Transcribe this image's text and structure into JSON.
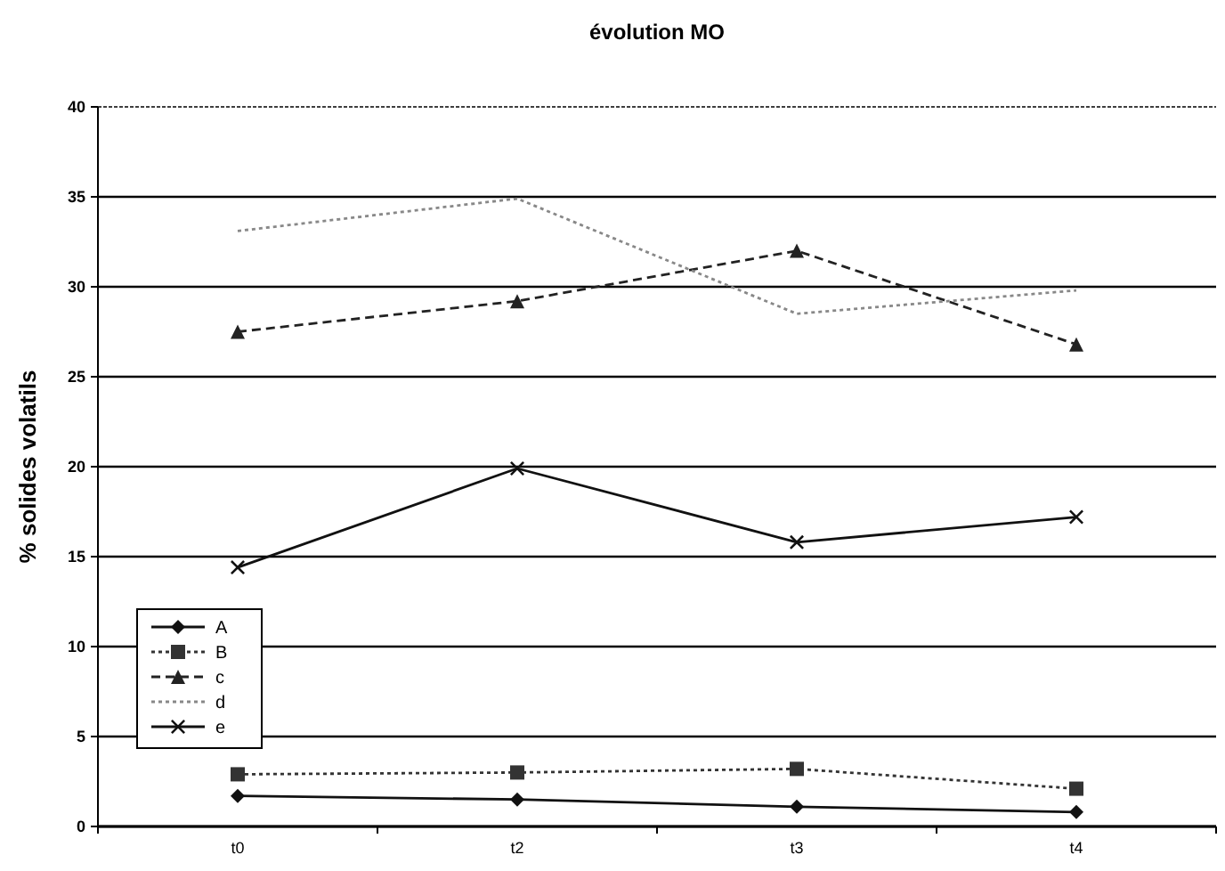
{
  "chart_data": {
    "type": "line",
    "title": "évolution MO",
    "ylabel": "% solides volatils",
    "categories": [
      "t0",
      "t2",
      "t3",
      "t4"
    ],
    "ylim": [
      0,
      40
    ],
    "yticks": [
      0,
      5,
      10,
      15,
      20,
      25,
      30,
      35,
      40
    ],
    "grid": "y",
    "legend": "bottom left",
    "series": [
      {
        "name": "A",
        "color": "#111111",
        "marker": "diamond",
        "line_style": "solid",
        "values": [
          1.7,
          1.5,
          1.1,
          0.8
        ]
      },
      {
        "name": "B",
        "color": "#333333",
        "marker": "square",
        "line_style": "dotted",
        "values": [
          2.9,
          3.0,
          3.2,
          2.1
        ]
      },
      {
        "name": "c",
        "color": "#222222",
        "marker": "triangle",
        "line_style": "dashed",
        "values": [
          27.5,
          29.2,
          32.0,
          26.8
        ]
      },
      {
        "name": "d",
        "color": "#888888",
        "marker": "none",
        "line_style": "dotted",
        "values": [
          33.1,
          34.9,
          28.5,
          29.8
        ]
      },
      {
        "name": "e",
        "color": "#111111",
        "marker": "cross",
        "line_style": "solid",
        "values": [
          14.4,
          19.9,
          15.8,
          17.2
        ]
      }
    ]
  }
}
